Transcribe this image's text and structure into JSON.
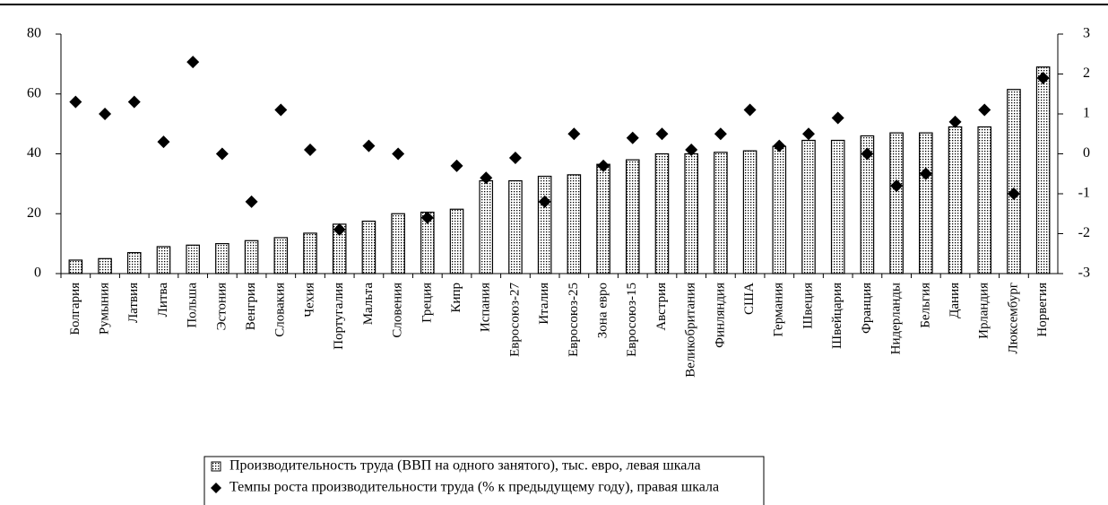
{
  "chart_data": {
    "type": "bar",
    "categories": [
      "Болгария",
      "Румыния",
      "Латвия",
      "Литва",
      "Польша",
      "Эстония",
      "Венгрия",
      "Словакия",
      "Чехия",
      "Португалия",
      "Мальта",
      "Словения",
      "Греция",
      "Кипр",
      "Испания",
      "Евросоюз-27",
      "Италия",
      "Евросоюз-25",
      "Зона евро",
      "Евросоюз-15",
      "Австрия",
      "Великобритания",
      "Финляндия",
      "США",
      "Германия",
      "Швеция",
      "Швейцария",
      "Франция",
      "Нидерланды",
      "Бельгия",
      "Дания",
      "Ирландия",
      "Люксембург",
      "Норвегия"
    ],
    "series": [
      {
        "name": "Производительность труда (ВВП на одного занятого), тыс. евро, левая шкала",
        "type": "bar",
        "color": "#000000",
        "values": [
          4.5,
          5,
          7,
          9,
          9.5,
          10,
          11,
          12,
          13.5,
          16.5,
          17.5,
          20,
          20.5,
          21.5,
          31,
          31,
          32.5,
          33,
          36.5,
          38,
          40,
          40,
          40.5,
          41,
          42.5,
          44.5,
          44.5,
          46,
          47,
          47,
          49,
          49,
          61.5,
          69
        ]
      },
      {
        "name": "Темпы роста производительности труда (% к предыдущему году), правая шкала",
        "type": "scatter",
        "axis": "y2",
        "color": "#000000",
        "values": [
          1.3,
          1.0,
          1.3,
          0.3,
          2.3,
          0,
          -1.2,
          1.1,
          0.1,
          -1.9,
          0.2,
          0,
          -1.6,
          -0.3,
          -0.6,
          -0.1,
          -1.2,
          0.5,
          -0.3,
          0.4,
          0.5,
          0.1,
          0.5,
          1.1,
          0.2,
          0.5,
          0.9,
          0,
          -0.8,
          -0.5,
          0.8,
          1.1,
          -1.0,
          1.9
        ]
      }
    ],
    "ylim": [
      0,
      80
    ],
    "yticks": [
      0,
      20,
      40,
      60,
      80
    ],
    "y2lim": [
      -3,
      3
    ],
    "y2ticks": [
      -3,
      -2,
      -1,
      0,
      1,
      2,
      3
    ],
    "legend": "bottom"
  }
}
